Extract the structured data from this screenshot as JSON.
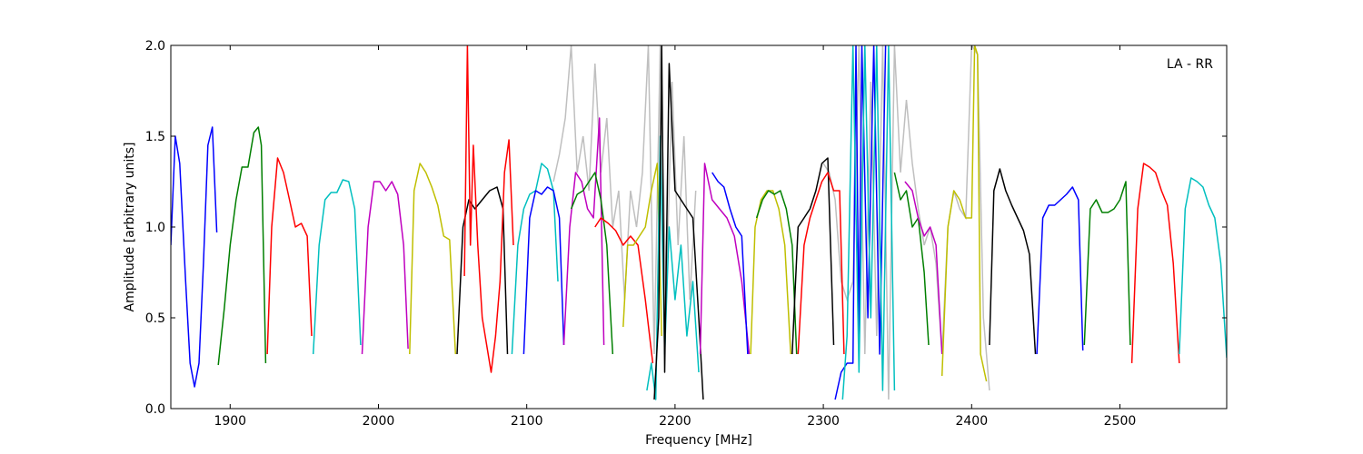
{
  "chart_data": {
    "type": "line",
    "title": "",
    "xlabel": "Frequency [MHz]",
    "ylabel": "Amplitude [arbitrary units]",
    "xlim": [
      1860,
      2572
    ],
    "ylim": [
      0.0,
      2.0
    ],
    "xticks": [
      1900,
      2000,
      2100,
      2200,
      2300,
      2400,
      2500
    ],
    "xtick_labels": [
      "1900",
      "2000",
      "2100",
      "2200",
      "2300",
      "2400",
      "2500"
    ],
    "yticks": [
      0.0,
      0.5,
      1.0,
      1.5,
      2.0
    ],
    "ytick_labels": [
      "0.0",
      "0.5",
      "1.0",
      "1.5",
      "2.0"
    ],
    "grid": false,
    "annotation": "LA - RR",
    "background_trace_color": "#bfbfbf",
    "series": [
      {
        "color": "#0000ff",
        "x": [
          1860,
          1863,
          1866,
          1870,
          1873,
          1876,
          1879,
          1882,
          1885,
          1888,
          1891
        ],
        "y": [
          0.9,
          1.5,
          1.35,
          0.7,
          0.25,
          0.12,
          0.25,
          0.8,
          1.45,
          1.55,
          0.97
        ]
      },
      {
        "color": "#007f00",
        "x": [
          1892,
          1896,
          1900,
          1904,
          1908,
          1912,
          1916,
          1919,
          1921,
          1924
        ],
        "y": [
          0.24,
          0.55,
          0.9,
          1.15,
          1.33,
          1.33,
          1.52,
          1.55,
          1.45,
          0.25
        ]
      },
      {
        "color": "#ff0000",
        "x": [
          1925,
          1928,
          1932,
          1936,
          1940,
          1944,
          1948,
          1952,
          1955
        ],
        "y": [
          0.3,
          1.0,
          1.38,
          1.3,
          1.15,
          1.0,
          1.02,
          0.95,
          0.4
        ]
      },
      {
        "color": "#00bfbf",
        "x": [
          1956,
          1960,
          1964,
          1968,
          1972,
          1976,
          1980,
          1984,
          1988
        ],
        "y": [
          0.3,
          0.9,
          1.15,
          1.19,
          1.19,
          1.26,
          1.25,
          1.1,
          0.35
        ]
      },
      {
        "color": "#bf00bf",
        "x": [
          1989,
          1993,
          1997,
          2001,
          2005,
          2009,
          2013,
          2017,
          2020
        ],
        "y": [
          0.3,
          1.0,
          1.25,
          1.25,
          1.2,
          1.25,
          1.18,
          0.9,
          0.33
        ]
      },
      {
        "color": "#bfbf00",
        "x": [
          2021,
          2024,
          2028,
          2032,
          2036,
          2040,
          2044,
          2048,
          2052
        ],
        "y": [
          0.3,
          1.2,
          1.35,
          1.3,
          1.22,
          1.12,
          0.95,
          0.93,
          0.3
        ]
      },
      {
        "color": "#000000",
        "x": [
          2053,
          2057,
          2061,
          2065,
          2070,
          2075,
          2080,
          2084,
          2087
        ],
        "y": [
          0.3,
          1.0,
          1.15,
          1.1,
          1.15,
          1.2,
          1.22,
          1.1,
          0.3
        ]
      },
      {
        "color": "#ff0000",
        "x": [
          2058,
          2060,
          2062,
          2064,
          2067,
          2070,
          2073,
          2076,
          2079,
          2082,
          2085,
          2088,
          2091
        ],
        "y": [
          0.73,
          2.0,
          0.9,
          1.45,
          0.9,
          0.5,
          0.35,
          0.2,
          0.4,
          0.7,
          1.3,
          1.48,
          0.9
        ]
      },
      {
        "color": "#00bfbf",
        "x": [
          2090,
          2094,
          2098,
          2102,
          2106,
          2110,
          2114,
          2118,
          2121
        ],
        "y": [
          0.3,
          0.9,
          1.1,
          1.18,
          1.2,
          1.35,
          1.32,
          1.2,
          0.7
        ]
      },
      {
        "color": "#0000ff",
        "x": [
          2098,
          2102,
          2106,
          2110,
          2114,
          2118,
          2122,
          2125
        ],
        "y": [
          0.3,
          1.05,
          1.2,
          1.18,
          1.22,
          1.2,
          1.05,
          0.35
        ]
      },
      {
        "color": "#bf00bf",
        "x": [
          2125,
          2129,
          2133,
          2137,
          2141,
          2145,
          2149,
          2152
        ],
        "y": [
          0.35,
          1.0,
          1.3,
          1.25,
          1.1,
          1.05,
          1.6,
          0.35
        ]
      },
      {
        "color": "#007f00",
        "x": [
          2130,
          2134,
          2138,
          2142,
          2146,
          2150,
          2154,
          2158
        ],
        "y": [
          1.1,
          1.18,
          1.2,
          1.25,
          1.3,
          1.15,
          0.9,
          0.3
        ]
      },
      {
        "color": "#ff0000",
        "x": [
          2146,
          2150,
          2155,
          2160,
          2165,
          2170,
          2175,
          2180,
          2185
        ],
        "y": [
          1.0,
          1.05,
          1.02,
          0.98,
          0.9,
          0.95,
          0.9,
          0.6,
          0.25
        ]
      },
      {
        "color": "#bfbf00",
        "x": [
          2165,
          2168,
          2172,
          2176,
          2180,
          2184,
          2188,
          2191
        ],
        "y": [
          0.45,
          0.9,
          0.9,
          0.95,
          1.0,
          1.2,
          1.35,
          0.4
        ]
      },
      {
        "color": "#00bfbf",
        "x": [
          2181,
          2184,
          2187,
          2190,
          2193,
          2196,
          2200,
          2204,
          2208,
          2212,
          2216
        ],
        "y": [
          0.1,
          0.25,
          0.05,
          1.5,
          0.3,
          1.0,
          0.6,
          0.9,
          0.4,
          0.7,
          0.2
        ]
      },
      {
        "color": "#000000",
        "x": [
          2186,
          2189,
          2191,
          2193,
          2196,
          2200,
          2204,
          2208,
          2212,
          2216,
          2219
        ],
        "y": [
          0.05,
          0.5,
          2.0,
          0.2,
          1.9,
          1.2,
          1.15,
          1.1,
          1.05,
          0.5,
          0.05
        ]
      },
      {
        "color": "#bf00bf",
        "x": [
          2217,
          2220,
          2225,
          2230,
          2235,
          2240,
          2245,
          2250
        ],
        "y": [
          0.3,
          1.35,
          1.15,
          1.1,
          1.05,
          0.95,
          0.7,
          0.3
        ]
      },
      {
        "color": "#0000ff",
        "x": [
          2225,
          2229,
          2233,
          2237,
          2241,
          2245,
          2249
        ],
        "y": [
          1.3,
          1.25,
          1.22,
          1.1,
          1.0,
          0.95,
          0.3
        ]
      },
      {
        "color": "#bfbf00",
        "x": [
          2251,
          2254,
          2258,
          2262,
          2266,
          2270,
          2274,
          2278
        ],
        "y": [
          0.3,
          1.0,
          1.15,
          1.2,
          1.2,
          1.1,
          0.9,
          0.3
        ]
      },
      {
        "color": "#007f00",
        "x": [
          2255,
          2259,
          2263,
          2267,
          2271,
          2275,
          2279,
          2282
        ],
        "y": [
          1.05,
          1.15,
          1.2,
          1.18,
          1.2,
          1.1,
          0.9,
          0.3
        ]
      },
      {
        "color": "#000000",
        "x": [
          2279,
          2283,
          2287,
          2291,
          2295,
          2299,
          2303,
          2307
        ],
        "y": [
          0.3,
          1.0,
          1.05,
          1.1,
          1.2,
          1.35,
          1.38,
          0.35
        ]
      },
      {
        "color": "#ff0000",
        "x": [
          2283,
          2287,
          2291,
          2295,
          2299,
          2303,
          2307,
          2311,
          2314
        ],
        "y": [
          0.3,
          0.9,
          1.05,
          1.15,
          1.25,
          1.3,
          1.2,
          1.2,
          0.3
        ]
      },
      {
        "color": "#0000ff",
        "x": [
          2308,
          2312,
          2316,
          2320,
          2322,
          2324,
          2326,
          2330,
          2334,
          2338,
          2342
        ],
        "y": [
          0.05,
          0.2,
          0.25,
          0.25,
          2.0,
          0.4,
          2.0,
          0.5,
          2.0,
          0.3,
          2.0
        ]
      },
      {
        "color": "#00bfbf",
        "x": [
          2313,
          2316,
          2320,
          2324,
          2328,
          2332,
          2336,
          2340,
          2344,
          2348
        ],
        "y": [
          0.05,
          0.4,
          2.0,
          0.2,
          2.0,
          0.5,
          2.0,
          0.1,
          2.0,
          0.1
        ]
      },
      {
        "color": "#007f00",
        "x": [
          2348,
          2352,
          2356,
          2360,
          2364,
          2368,
          2371
        ],
        "y": [
          1.3,
          1.15,
          1.2,
          1.0,
          1.05,
          0.75,
          0.35
        ]
      },
      {
        "color": "#bf00bf",
        "x": [
          2355,
          2360,
          2364,
          2368,
          2372,
          2376,
          2380
        ],
        "y": [
          1.25,
          1.2,
          1.05,
          0.95,
          1.0,
          0.9,
          0.3
        ]
      },
      {
        "color": "#bfbf00",
        "x": [
          2380,
          2384,
          2388,
          2392,
          2396,
          2400,
          2402,
          2404,
          2406,
          2410
        ],
        "y": [
          0.18,
          1.0,
          1.2,
          1.15,
          1.05,
          1.05,
          2.0,
          1.95,
          0.3,
          0.15
        ]
      },
      {
        "color": "#000000",
        "x": [
          2412,
          2415,
          2419,
          2423,
          2427,
          2431,
          2435,
          2439,
          2443
        ],
        "y": [
          0.35,
          1.2,
          1.32,
          1.2,
          1.12,
          1.05,
          0.98,
          0.85,
          0.3
        ]
      },
      {
        "color": "#0000ff",
        "x": [
          2444,
          2448,
          2452,
          2456,
          2460,
          2464,
          2468,
          2472,
          2475
        ],
        "y": [
          0.3,
          1.05,
          1.12,
          1.12,
          1.15,
          1.18,
          1.22,
          1.15,
          0.32
        ]
      },
      {
        "color": "#007f00",
        "x": [
          2476,
          2480,
          2484,
          2488,
          2492,
          2496,
          2500,
          2504,
          2507
        ],
        "y": [
          0.35,
          1.1,
          1.15,
          1.08,
          1.08,
          1.1,
          1.15,
          1.25,
          0.35
        ]
      },
      {
        "color": "#ff0000",
        "x": [
          2508,
          2512,
          2516,
          2520,
          2524,
          2528,
          2532,
          2536,
          2540
        ],
        "y": [
          0.25,
          1.1,
          1.35,
          1.33,
          1.3,
          1.2,
          1.12,
          0.8,
          0.25
        ]
      },
      {
        "color": "#00bfbf",
        "x": [
          2540,
          2544,
          2548,
          2552,
          2556,
          2560,
          2564,
          2568,
          2572
        ],
        "y": [
          0.3,
          1.1,
          1.27,
          1.25,
          1.22,
          1.12,
          1.05,
          0.8,
          0.28
        ]
      }
    ],
    "background_series": [
      {
        "x": [
          2118,
          2122,
          2126,
          2130,
          2134,
          2138,
          2142,
          2146,
          2150,
          2154,
          2158,
          2162,
          2166,
          2170,
          2174,
          2178,
          2182,
          2186,
          2190,
          2194,
          2198,
          2202,
          2206,
          2210,
          2214
        ],
        "y": [
          1.25,
          1.4,
          1.6,
          2.0,
          1.3,
          1.5,
          1.2,
          1.9,
          1.3,
          1.6,
          1.0,
          1.2,
          0.6,
          1.2,
          1.0,
          1.3,
          2.0,
          0.3,
          2.0,
          0.6,
          1.8,
          0.9,
          1.5,
          0.6,
          1.2
        ]
      },
      {
        "x": [
          2300,
          2304,
          2308,
          2312,
          2316,
          2320,
          2324,
          2328,
          2332,
          2336,
          2340,
          2344,
          2348,
          2352,
          2356,
          2360,
          2364,
          2368,
          2372,
          2376,
          2380,
          2384,
          2388,
          2392,
          2396,
          2400,
          2404,
          2408,
          2412
        ],
        "y": [
          1.35,
          1.3,
          1.15,
          0.7,
          0.6,
          0.7,
          2.0,
          0.3,
          1.8,
          0.4,
          2.0,
          0.05,
          2.0,
          1.3,
          1.7,
          1.35,
          1.1,
          0.9,
          1.0,
          0.8,
          0.3,
          1.0,
          1.2,
          1.1,
          1.05,
          2.0,
          1.95,
          0.5,
          0.1
        ]
      }
    ]
  }
}
